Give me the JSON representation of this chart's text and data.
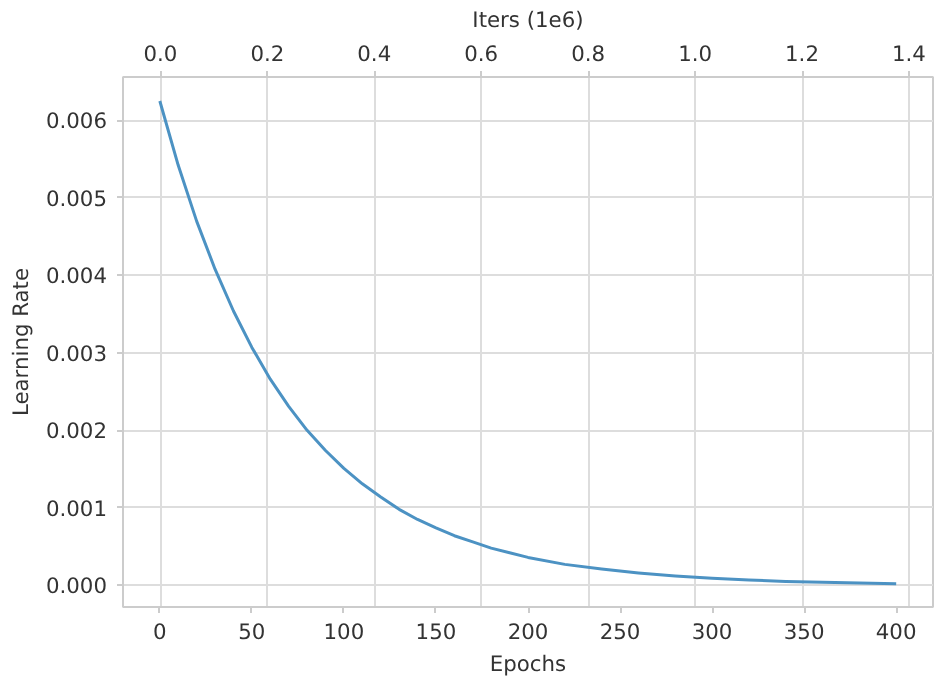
{
  "chart_data": {
    "type": "line",
    "xlabel": "Epochs",
    "ylabel": "Learning Rate",
    "x2label": "Iters (1e6)",
    "x": [
      0,
      10,
      20,
      30,
      40,
      50,
      60,
      70,
      80,
      90,
      100,
      110,
      120,
      130,
      140,
      150,
      160,
      170,
      180,
      190,
      200,
      220,
      240,
      260,
      280,
      300,
      320,
      340,
      360,
      380,
      400
    ],
    "series": [
      {
        "color": "#4c92c3",
        "values": [
          0.00625,
          0.00542,
          0.0047,
          0.00408,
          0.00354,
          0.00307,
          0.00266,
          0.00231,
          0.002,
          0.00174,
          0.00151,
          0.00131,
          0.00114,
          0.00098,
          0.00085,
          0.00074,
          0.00064,
          0.00056,
          0.00048,
          0.00042,
          0.00036,
          0.00027,
          0.00021,
          0.00016,
          0.00012,
          9e-05,
          7e-05,
          5e-05,
          4e-05,
          3e-05,
          2e-05
        ]
      }
    ],
    "xlim": [
      -20,
      420
    ],
    "xticks": [
      0,
      50,
      100,
      150,
      200,
      250,
      300,
      350,
      400
    ],
    "x2lim": [
      -0.07,
      1.445
    ],
    "x2ticks": [
      {
        "value": 0,
        "label": "0.0"
      },
      {
        "value": 0.2,
        "label": "0.2"
      },
      {
        "value": 0.4,
        "label": "0.4"
      },
      {
        "value": 0.6,
        "label": "0.6"
      },
      {
        "value": 0.8,
        "label": "0.8"
      },
      {
        "value": 1.0,
        "label": "1.0"
      },
      {
        "value": 1.2,
        "label": "1.2"
      },
      {
        "value": 1.4,
        "label": "1.4"
      }
    ],
    "ylim": [
      -0.00028,
      0.00656
    ],
    "yticks": [
      {
        "value": 0,
        "label": "0.000"
      },
      {
        "value": 0.001,
        "label": "0.001"
      },
      {
        "value": 0.002,
        "label": "0.002"
      },
      {
        "value": 0.003,
        "label": "0.003"
      },
      {
        "value": 0.004,
        "label": "0.004"
      },
      {
        "value": 0.005,
        "label": "0.005"
      },
      {
        "value": 0.006,
        "label": "0.006"
      }
    ],
    "grid": true,
    "line_style": "solid"
  }
}
